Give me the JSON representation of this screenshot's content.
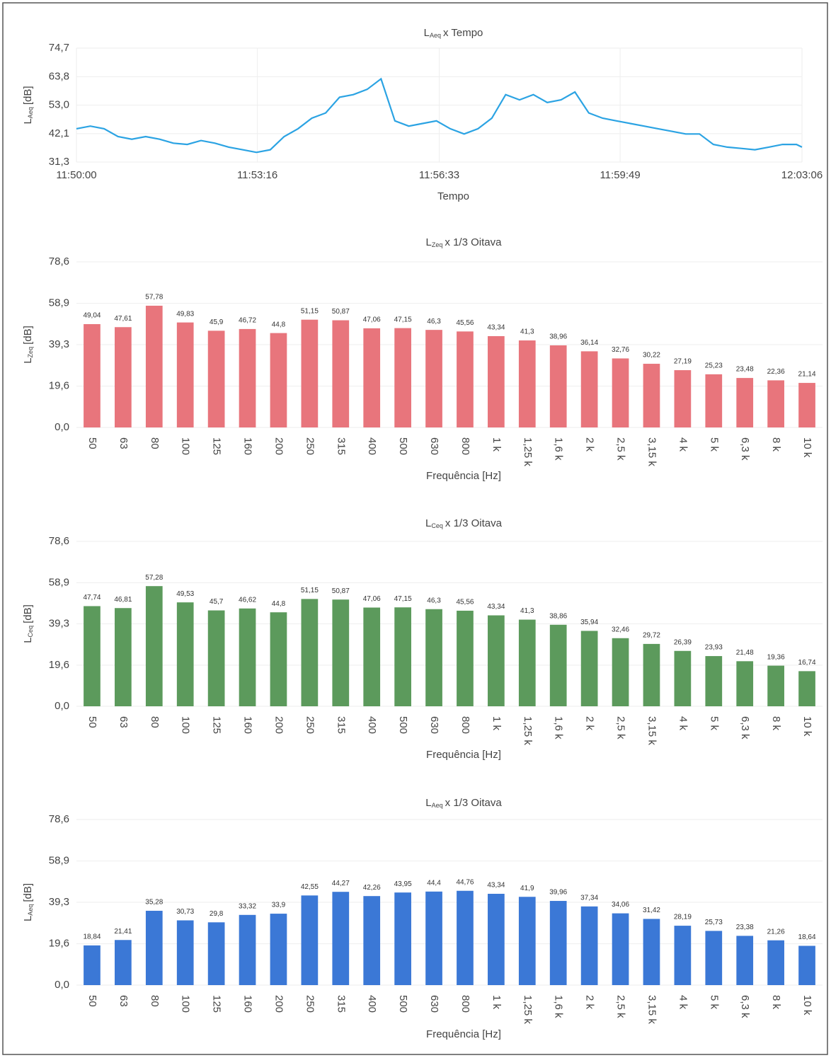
{
  "chart_data": [
    {
      "type": "line",
      "title": [
        "L",
        "Aeq",
        "x Tempo"
      ],
      "ylabel": [
        "L",
        "Aeq",
        "[dB]"
      ],
      "xlabel": "Tempo",
      "color": "#2ba3e3",
      "grid": true,
      "x": [
        "11:50:00",
        "11:50:15",
        "11:50:30",
        "11:50:45",
        "11:51:00",
        "11:51:15",
        "11:51:30",
        "11:51:45",
        "11:52:00",
        "11:52:15",
        "11:52:30",
        "11:52:45",
        "11:53:00",
        "11:53:15",
        "11:53:30",
        "11:53:45",
        "11:54:00",
        "11:54:15",
        "11:54:30",
        "11:54:45",
        "11:55:00",
        "11:55:15",
        "11:55:30",
        "11:55:45",
        "11:56:00",
        "11:56:15",
        "11:56:30",
        "11:56:45",
        "11:57:00",
        "11:57:15",
        "11:57:30",
        "11:57:45",
        "11:58:00",
        "11:58:15",
        "11:58:30",
        "11:58:45",
        "11:59:00",
        "11:59:15",
        "11:59:30",
        "11:59:45",
        "12:00:00",
        "12:00:15",
        "12:00:30",
        "12:00:45",
        "12:01:00",
        "12:01:15",
        "12:01:30",
        "12:01:45",
        "12:02:00",
        "12:02:15",
        "12:02:30",
        "12:02:45",
        "12:03:00",
        "12:03:06"
      ],
      "values": [
        44,
        45,
        44,
        41,
        40,
        41,
        40,
        38.5,
        38,
        39.5,
        38.5,
        37,
        36,
        35,
        36,
        41,
        44,
        48,
        50,
        56,
        57,
        59,
        63,
        47,
        45,
        46,
        47,
        44,
        42,
        44,
        48,
        57,
        55,
        57,
        54,
        55,
        58,
        50,
        48,
        47,
        46,
        45,
        44,
        43,
        42,
        42,
        38,
        37,
        36.5,
        36,
        37,
        38,
        38,
        37
      ],
      "xlim": [
        "11:50:00",
        "12:03:06"
      ],
      "xticks": [
        "11:50:00",
        "11:53:16",
        "11:56:33",
        "11:59:49",
        "12:03:06"
      ],
      "ylim": [
        31.3,
        74.7
      ],
      "yticks": [
        {
          "value": 31.3,
          "label": "31,3"
        },
        {
          "value": 42.1,
          "label": "42,1"
        },
        {
          "value": 53.0,
          "label": "53,0"
        },
        {
          "value": 63.8,
          "label": "63,8"
        },
        {
          "value": 74.7,
          "label": "74,7"
        }
      ]
    },
    {
      "type": "bar",
      "title": [
        "L",
        "Zeq",
        "x 1/3 Oitava"
      ],
      "ylabel": [
        "L",
        "Zeq",
        "[dB]"
      ],
      "xlabel": "Frequência [Hz]",
      "color": "#e8757c",
      "grid": true,
      "categories": [
        "50",
        "63",
        "80",
        "100",
        "125",
        "160",
        "200",
        "250",
        "315",
        "400",
        "500",
        "630",
        "800",
        "1 k",
        "1,25 k",
        "1,6 k",
        "2 k",
        "2,5 k",
        "3,15 k",
        "4 k",
        "5 k",
        "6,3 k",
        "8 k",
        "10 k"
      ],
      "values": [
        49.04,
        47.61,
        57.78,
        49.83,
        45.9,
        46.72,
        44.8,
        51.15,
        50.87,
        47.06,
        47.15,
        46.3,
        45.56,
        43.34,
        41.3,
        38.96,
        36.14,
        32.76,
        30.22,
        27.19,
        25.23,
        23.48,
        22.36,
        21.14
      ],
      "value_labels": [
        "49,04",
        "47,61",
        "57,78",
        "49,83",
        "45,9",
        "46,72",
        "44,8",
        "51,15",
        "50,87",
        "47,06",
        "47,15",
        "46,3",
        "45,56",
        "43,34",
        "41,3",
        "38,96",
        "36,14",
        "32,76",
        "30,22",
        "27,19",
        "25,23",
        "23,48",
        "22,36",
        "21,14"
      ],
      "ylim": [
        0,
        78.6
      ],
      "yticks": [
        {
          "value": 0,
          "label": "0,0"
        },
        {
          "value": 19.6,
          "label": "19,6"
        },
        {
          "value": 39.3,
          "label": "39,3"
        },
        {
          "value": 58.9,
          "label": "58,9"
        },
        {
          "value": 78.6,
          "label": "78,6"
        }
      ]
    },
    {
      "type": "bar",
      "title": [
        "L",
        "Ceq",
        "x 1/3 Oitava"
      ],
      "ylabel": [
        "L",
        "Ceq",
        "[dB]"
      ],
      "xlabel": "Frequência [Hz]",
      "color": "#5c9a5c",
      "grid": true,
      "categories": [
        "50",
        "63",
        "80",
        "100",
        "125",
        "160",
        "200",
        "250",
        "315",
        "400",
        "500",
        "630",
        "800",
        "1 k",
        "1,25 k",
        "1,6 k",
        "2 k",
        "2,5 k",
        "3,15 k",
        "4 k",
        "5 k",
        "6,3 k",
        "8 k",
        "10 k"
      ],
      "values": [
        47.74,
        46.81,
        57.28,
        49.53,
        45.7,
        46.62,
        44.8,
        51.15,
        50.87,
        47.06,
        47.15,
        46.3,
        45.56,
        43.34,
        41.3,
        38.86,
        35.94,
        32.46,
        29.72,
        26.39,
        23.93,
        21.48,
        19.36,
        16.74
      ],
      "value_labels": [
        "47,74",
        "46,81",
        "57,28",
        "49,53",
        "45,7",
        "46,62",
        "44,8",
        "51,15",
        "50,87",
        "47,06",
        "47,15",
        "46,3",
        "45,56",
        "43,34",
        "41,3",
        "38,86",
        "35,94",
        "32,46",
        "29,72",
        "26,39",
        "23,93",
        "21,48",
        "19,36",
        "16,74"
      ],
      "ylim": [
        0,
        78.6
      ],
      "yticks": [
        {
          "value": 0,
          "label": "0,0"
        },
        {
          "value": 19.6,
          "label": "19,6"
        },
        {
          "value": 39.3,
          "label": "39,3"
        },
        {
          "value": 58.9,
          "label": "58,9"
        },
        {
          "value": 78.6,
          "label": "78,6"
        }
      ]
    },
    {
      "type": "bar",
      "title": [
        "L",
        "Aeq",
        "x 1/3 Oitava"
      ],
      "ylabel": [
        "L",
        "Aeq",
        "[dB]"
      ],
      "xlabel": "Frequência [Hz]",
      "color": "#3b78d6",
      "grid": true,
      "categories": [
        "50",
        "63",
        "80",
        "100",
        "125",
        "160",
        "200",
        "250",
        "315",
        "400",
        "500",
        "630",
        "800",
        "1 k",
        "1,25 k",
        "1,6 k",
        "2 k",
        "2,5 k",
        "3,15 k",
        "4 k",
        "5 k",
        "6,3 k",
        "8 k",
        "10 k"
      ],
      "values": [
        18.84,
        21.41,
        35.28,
        30.73,
        29.8,
        33.32,
        33.9,
        42.55,
        44.27,
        42.26,
        43.95,
        44.4,
        44.76,
        43.34,
        41.9,
        39.96,
        37.34,
        34.06,
        31.42,
        28.19,
        25.73,
        23.38,
        21.26,
        18.64
      ],
      "value_labels": [
        "18,84",
        "21,41",
        "35,28",
        "30,73",
        "29,8",
        "33,32",
        "33,9",
        "42,55",
        "44,27",
        "42,26",
        "43,95",
        "44,4",
        "44,76",
        "43,34",
        "41,9",
        "39,96",
        "37,34",
        "34,06",
        "31,42",
        "28,19",
        "25,73",
        "23,38",
        "21,26",
        "18,64"
      ],
      "ylim": [
        0,
        78.6
      ],
      "yticks": [
        {
          "value": 0,
          "label": "0,0"
        },
        {
          "value": 19.6,
          "label": "19,6"
        },
        {
          "value": 39.3,
          "label": "39,3"
        },
        {
          "value": 58.9,
          "label": "58,9"
        },
        {
          "value": 78.6,
          "label": "78,6"
        }
      ]
    }
  ]
}
